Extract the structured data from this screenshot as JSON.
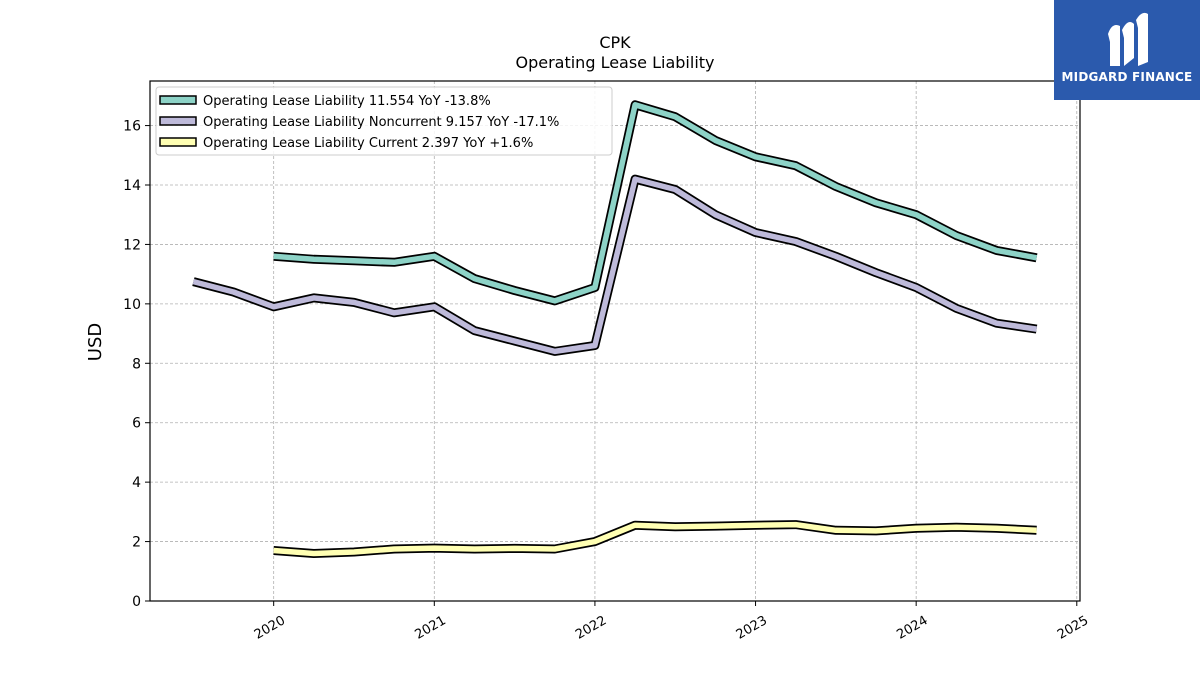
{
  "logo": {
    "text": "MIDGARD FINANCE",
    "color": "#2b5aad"
  },
  "chart_data": {
    "type": "line",
    "title": "CPK",
    "subtitle": "Operating Lease Liability",
    "ylabel": "USD",
    "xlabel": "",
    "ylim": [
      0,
      17.5
    ],
    "xlim": [
      2019.23,
      2025.02
    ],
    "yticks": [
      "0",
      "2",
      "4",
      "6",
      "8",
      "10",
      "12",
      "14",
      "16"
    ],
    "xticks": [
      "2020",
      "2021",
      "2022",
      "2023",
      "2024",
      "2025"
    ],
    "grid": true,
    "legend_position": "top-left",
    "series": [
      {
        "name": "Operating Lease Liability",
        "legend_label": "Operating Lease Liability  11.554 YoY -13.8%",
        "color": "#8dd3c7",
        "x": [
          2020.0,
          2020.25,
          2020.5,
          2020.75,
          2021.0,
          2021.25,
          2021.5,
          2021.75,
          2022.0,
          2022.25,
          2022.5,
          2022.75,
          2023.0,
          2023.25,
          2023.5,
          2023.75,
          2024.0,
          2024.25,
          2024.5,
          2024.75
        ],
        "values": [
          11.6,
          11.5,
          11.45,
          11.4,
          11.6,
          10.85,
          10.45,
          10.1,
          10.55,
          16.7,
          16.3,
          15.5,
          14.95,
          14.65,
          13.95,
          13.4,
          13.0,
          12.3,
          11.8,
          11.55
        ]
      },
      {
        "name": "Operating Lease Liability Noncurrent",
        "legend_label": "Operating Lease Liability Noncurrent  9.157 YoY -17.1%",
        "color": "#bebada",
        "x": [
          2019.5,
          2019.75,
          2020.0,
          2020.25,
          2020.5,
          2020.75,
          2021.0,
          2021.25,
          2021.5,
          2021.75,
          2022.0,
          2022.25,
          2022.5,
          2022.75,
          2023.0,
          2023.25,
          2023.5,
          2023.75,
          2024.0,
          2024.25,
          2024.5,
          2024.75
        ],
        "values": [
          10.75,
          10.4,
          9.9,
          10.2,
          10.05,
          9.7,
          9.9,
          9.1,
          8.75,
          8.4,
          8.6,
          14.2,
          13.85,
          13.0,
          12.4,
          12.1,
          11.6,
          11.05,
          10.55,
          9.85,
          9.35,
          9.15
        ]
      },
      {
        "name": "Operating Lease Liability Current",
        "legend_label": "Operating Lease Liability Current  2.397 YoY +1.6%",
        "color": "#ffffb3",
        "x": [
          2020.0,
          2020.25,
          2020.5,
          2020.75,
          2021.0,
          2021.25,
          2021.5,
          2021.75,
          2022.0,
          2022.25,
          2022.5,
          2022.75,
          2023.0,
          2023.25,
          2023.5,
          2023.75,
          2024.0,
          2024.25,
          2024.5,
          2024.75
        ],
        "values": [
          1.7,
          1.6,
          1.65,
          1.75,
          1.78,
          1.75,
          1.77,
          1.75,
          2.0,
          2.55,
          2.5,
          2.52,
          2.55,
          2.57,
          2.38,
          2.36,
          2.45,
          2.48,
          2.45,
          2.38
        ]
      }
    ]
  }
}
